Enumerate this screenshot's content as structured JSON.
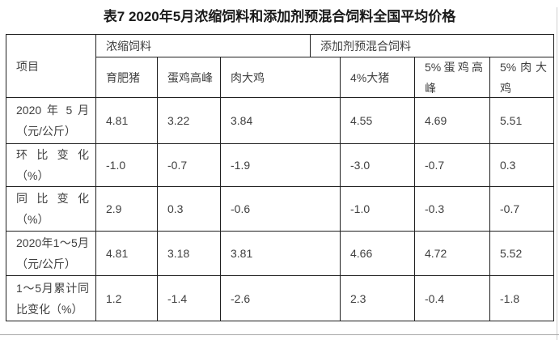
{
  "title": "表7 2020年5月浓缩饲料和添加剂预混合饲料全国平均价格",
  "table": {
    "corner_label": "项目",
    "groups": [
      {
        "label": "浓缩饲料"
      },
      {
        "label": "添加剂预混合饲料"
      }
    ],
    "columns": [
      "育肥猪",
      "蛋鸡高峰",
      "肉大鸡",
      "4%大猪",
      "5%蛋鸡高峰",
      "5%肉大鸡"
    ],
    "rows": [
      {
        "label": "2020 年 5 月（元/公斤）",
        "values": [
          "4.81",
          "3.22",
          "3.84",
          "4.55",
          "4.69",
          "5.51"
        ]
      },
      {
        "label": "环 比 变 化（%）",
        "values": [
          "-1.0",
          "-0.7",
          "-1.9",
          "-3.0",
          "-0.7",
          "0.3"
        ]
      },
      {
        "label": "同 比 变 化（%）",
        "values": [
          "2.9",
          "0.3",
          "-0.6",
          "-1.0",
          "-0.3",
          "-0.7"
        ]
      },
      {
        "label": "2020年1～5月（元/公斤）",
        "values": [
          "4.81",
          "3.18",
          "3.81",
          "4.66",
          "4.72",
          "5.52"
        ]
      },
      {
        "label": "1～5月累计同比变化（%）",
        "values": [
          "1.2",
          "-1.4",
          "-2.6",
          "2.3",
          "-0.4",
          "-1.8"
        ]
      }
    ]
  },
  "colors": {
    "title_text": "#1a1a1a",
    "cell_text": "#3f3f3f",
    "table_border": "#1f1f1f",
    "page_edge": "#cfcfcf"
  }
}
